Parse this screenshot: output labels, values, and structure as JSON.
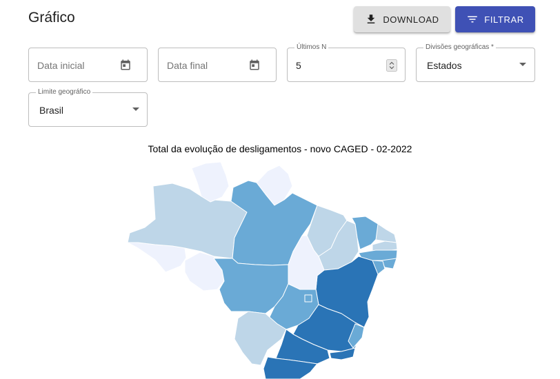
{
  "header": {
    "title": "Gráfico",
    "download_label": "DOWNLOAD",
    "filter_label": "FILTRAR"
  },
  "filters": {
    "start_date": {
      "placeholder": "Data inicial"
    },
    "end_date": {
      "placeholder": "Data final"
    },
    "last_n": {
      "label": "Últimos N",
      "value": "5"
    },
    "divisions": {
      "label": "Divisões geográficas *",
      "value": "Estados"
    },
    "limit": {
      "label": "Limite geográfico",
      "value": "Brasil"
    }
  },
  "map": {
    "title": "Total da evolução de desligamentos - novo CAGED - 02-2022",
    "scale_colors": [
      "#eef2fd",
      "#bed6e8",
      "#6aaad6",
      "#2a74b6"
    ],
    "regions": [
      {
        "name": "AC",
        "level": 1
      },
      {
        "name": "AM",
        "level": 2
      },
      {
        "name": "RR",
        "level": 1
      },
      {
        "name": "AP",
        "level": 1
      },
      {
        "name": "PA",
        "level": 3
      },
      {
        "name": "MA",
        "level": 2
      },
      {
        "name": "PI",
        "level": 2
      },
      {
        "name": "CE",
        "level": 3
      },
      {
        "name": "RN",
        "level": 2
      },
      {
        "name": "PB",
        "level": 2
      },
      {
        "name": "PE",
        "level": 3
      },
      {
        "name": "AL",
        "level": 3
      },
      {
        "name": "SE",
        "level": 3
      },
      {
        "name": "BA",
        "level": 4
      },
      {
        "name": "TO",
        "level": 1
      },
      {
        "name": "RO",
        "level": 1
      },
      {
        "name": "MT",
        "level": 3
      },
      {
        "name": "GO",
        "level": 3
      },
      {
        "name": "DF",
        "level": 3
      },
      {
        "name": "MS",
        "level": 2
      },
      {
        "name": "MG",
        "level": 4
      },
      {
        "name": "ES",
        "level": 3
      },
      {
        "name": "SP",
        "level": 4
      },
      {
        "name": "RJ",
        "level": 4
      },
      {
        "name": "PR",
        "level": 4
      }
    ]
  }
}
